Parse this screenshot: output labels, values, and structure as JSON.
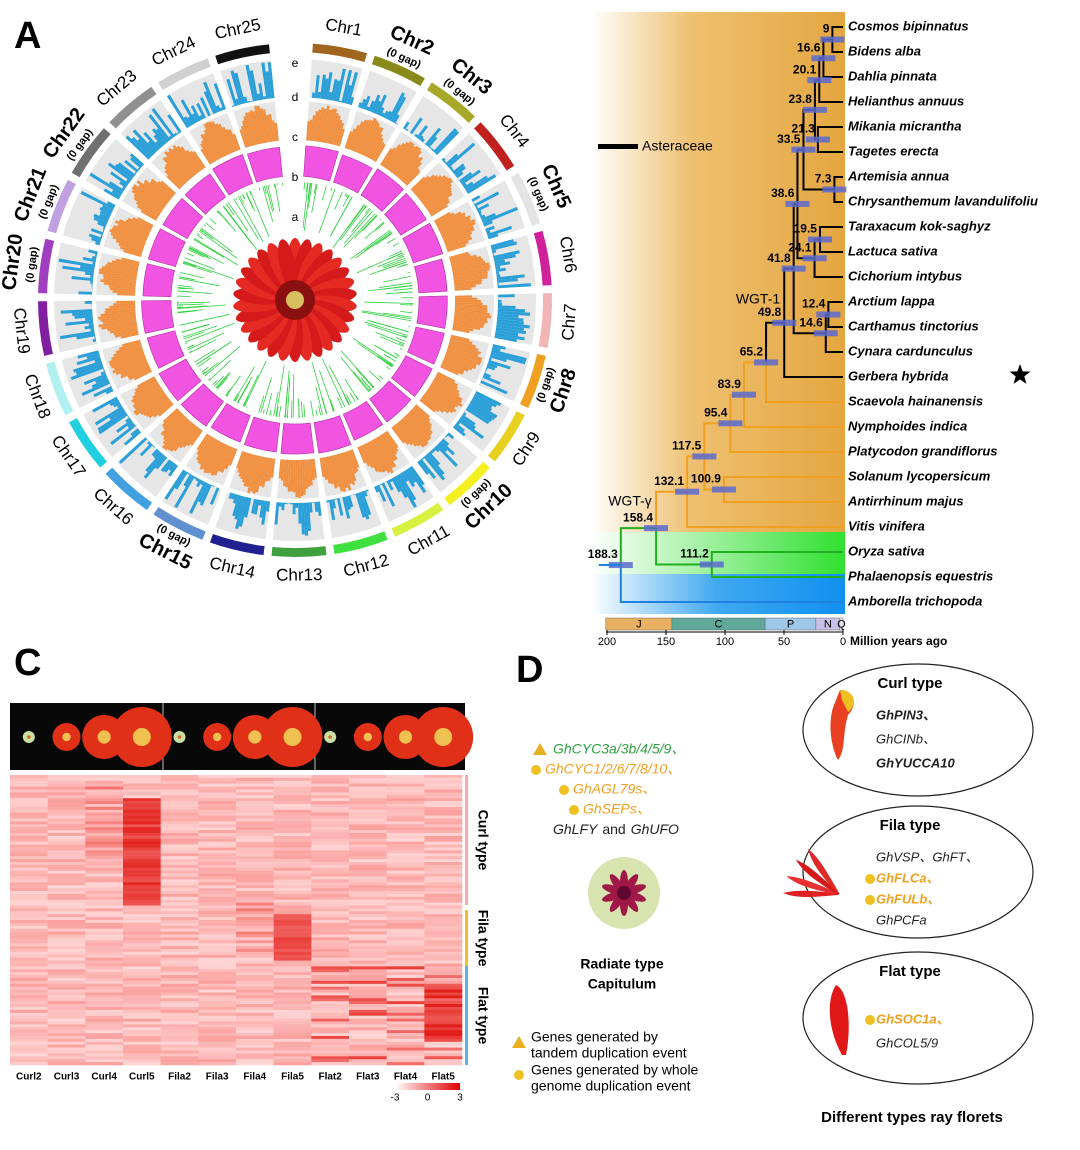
{
  "panels": {
    "A": {
      "label": "A",
      "tracks": [
        "e",
        "d",
        "c",
        "b",
        "a"
      ],
      "chromosomes": [
        {
          "name": "Chr1",
          "color": "#a0661e"
        },
        {
          "name": "Chr2",
          "note": "(0 gap)",
          "color": "#8a8a1a"
        },
        {
          "name": "Chr3",
          "note": "(0 gap)",
          "color": "#a8a828"
        },
        {
          "name": "Chr4",
          "color": "#c0201e"
        },
        {
          "name": "Chr5",
          "note": "(0 gap)",
          "color": "#e4e4e4"
        },
        {
          "name": "Chr6",
          "color": "#d0209c"
        },
        {
          "name": "Chr7",
          "color": "#f2b4b4"
        },
        {
          "name": "Chr8",
          "note": "(0 gap)",
          "color": "#f0a020"
        },
        {
          "name": "Chr9",
          "color": "#e8d020"
        },
        {
          "name": "Chr10",
          "note": "(0 gap)",
          "color": "#f4f020"
        },
        {
          "name": "Chr11",
          "color": "#d8f040"
        },
        {
          "name": "Chr12",
          "color": "#40e040"
        },
        {
          "name": "Chr13",
          "color": "#40a040"
        },
        {
          "name": "Chr14",
          "color": "#202090"
        },
        {
          "name": "Chr15",
          "note": "(0 gap)",
          "color": "#6090d0"
        },
        {
          "name": "Chr16",
          "color": "#40a0e0"
        },
        {
          "name": "Chr17",
          "color": "#20d0e0"
        },
        {
          "name": "Chr18",
          "color": "#b0f0f0"
        },
        {
          "name": "Chr19",
          "color": "#8020a0"
        },
        {
          "name": "Chr20",
          "note": "(0 gap)",
          "color": "#a040c0"
        },
        {
          "name": "Chr21",
          "note": "(0 gap)",
          "color": "#c0a0e0"
        },
        {
          "name": "Chr22",
          "note": "(0 gap)",
          "color": "#707070"
        },
        {
          "name": "Chr23",
          "color": "#909090"
        },
        {
          "name": "Chr24",
          "color": "#d0d0d0"
        },
        {
          "name": "Chr25",
          "color": "#111111"
        }
      ]
    },
    "B": {
      "label": "B",
      "group": "Asteraceae",
      "species": [
        "Cosmos bipinnatus",
        "Bidens alba",
        "Dahlia pinnata",
        "Helianthus annuus",
        "Mikania micrantha",
        "Tagetes erecta",
        "Artemisia annua",
        "Chrysanthemum lavandulifoliu",
        "Taraxacum kok-saghyz",
        "Lactuca sativa",
        "Cichorium intybus",
        "Arctium lappa",
        "Carthamus tinctorius",
        "Cynara cardunculus",
        "Gerbera hybrida",
        "Scaevola hainanensis",
        "Nymphoides indica",
        "Platycodon grandiflorus",
        "Solanum lycopersicum",
        "Antirrhinum majus",
        "Vitis vinifera",
        "Oryza sativa",
        "Phalaenopsis equestris",
        "Amborella trichopoda"
      ],
      "node_ages": [
        9,
        16.6,
        20.1,
        21.3,
        23.8,
        7.3,
        33.5,
        19.5,
        24.1,
        38.6,
        12.4,
        14.6,
        41.8,
        49.8,
        65.2,
        83.9,
        95.4,
        100.9,
        117.5,
        132.1,
        111.2,
        158.4,
        188.3
      ],
      "events": [
        "WGT-1",
        "WGT-γ"
      ],
      "periods": [
        "J",
        "C",
        "P",
        "N",
        "Q"
      ],
      "time_ticks": [
        200,
        150,
        100,
        50,
        0
      ],
      "time_label": "Million years ago"
    },
    "C": {
      "label": "C",
      "columns": [
        "Curl2",
        "Curl3",
        "Curl4",
        "Curl5",
        "Fila2",
        "Fila3",
        "Fila4",
        "Fila5",
        "Flat2",
        "Flat3",
        "Flat4",
        "Flat5"
      ],
      "groups": [
        "Curl type",
        "Fila type",
        "Flat type"
      ],
      "scale": [
        -3,
        0,
        3
      ]
    },
    "D": {
      "label": "D",
      "genes": [
        "GhCYC3a/3b/4/5/9、",
        "GhCYC1/2/6/7/8/10、",
        "GhAGL79s、",
        "GhSEPs、"
      ],
      "genes_other": [
        "GhLFY",
        "and",
        "GhUFO"
      ],
      "capitulum": [
        "Radiate type",
        "Capitulum"
      ],
      "legend": [
        [
          "Genes generated by",
          "tandem duplication event"
        ],
        [
          "Genes generated by whole",
          "genome duplication event"
        ]
      ],
      "types": [
        {
          "name": "Curl type",
          "genes": [
            "GhPIN3、",
            "GhCINb、",
            "GhYUCCA10"
          ]
        },
        {
          "name": "Fila type",
          "genes": [
            "GhVSP、GhFT、",
            "GhFLCa、",
            "GhFULb、",
            "GhPCFa"
          ]
        },
        {
          "name": "Flat type",
          "genes": [
            "GhSOC1a、",
            "GhCOL5/9"
          ]
        }
      ],
      "footer": "Different types ray florets"
    }
  }
}
